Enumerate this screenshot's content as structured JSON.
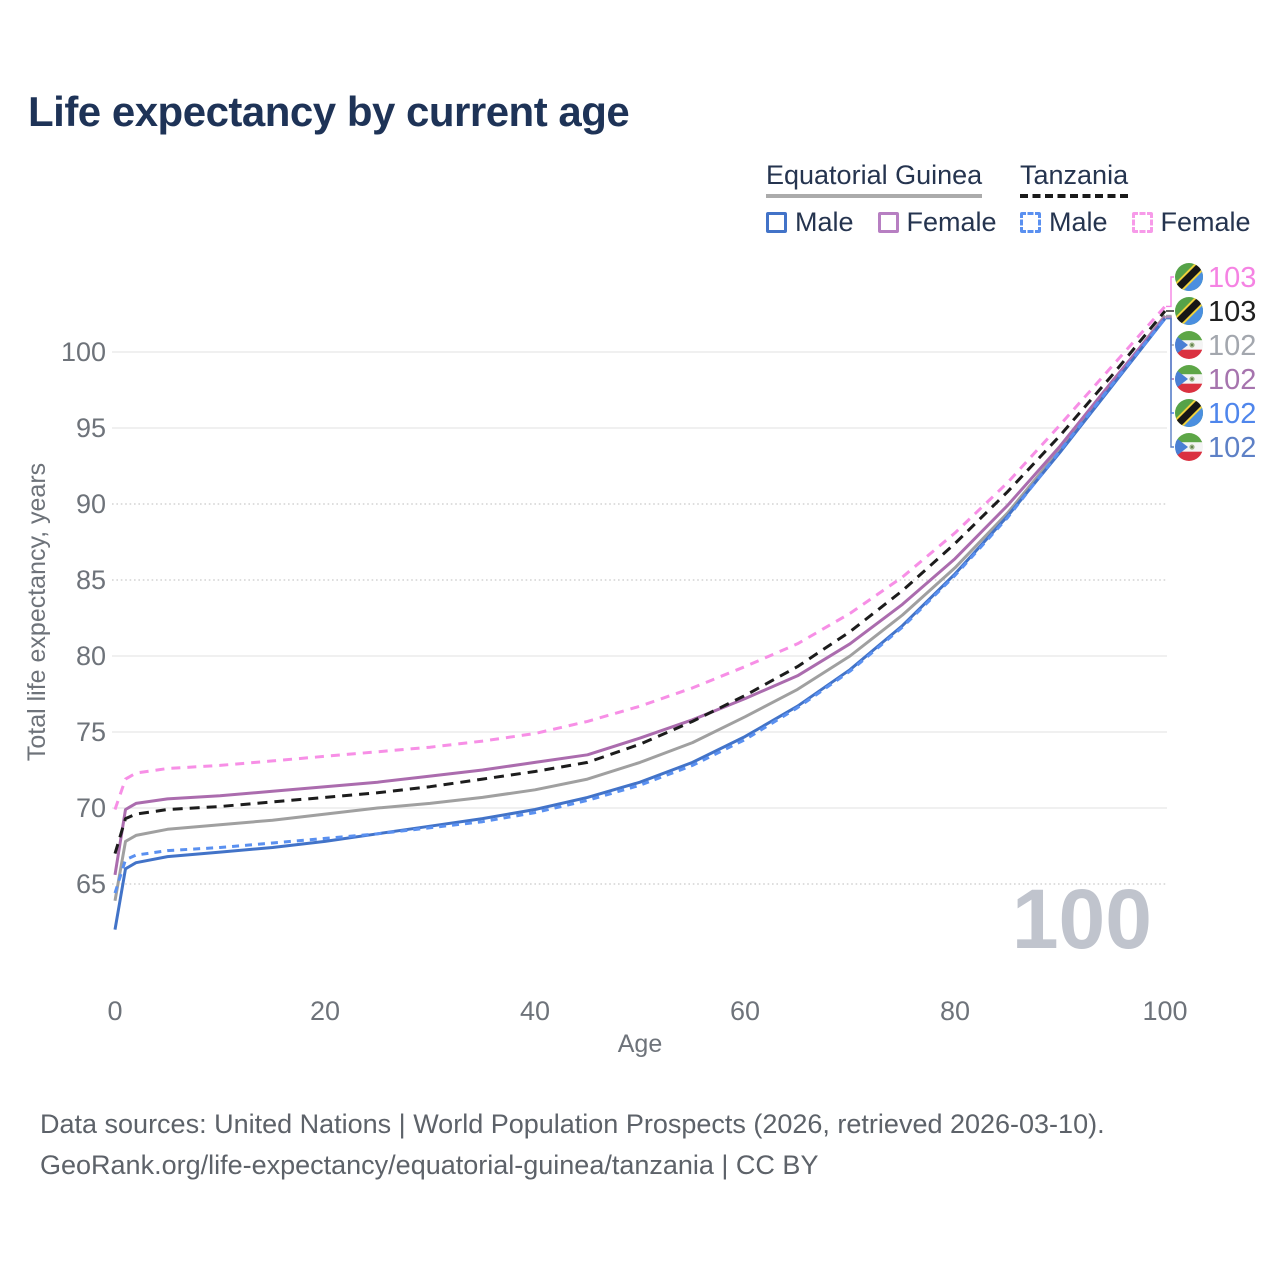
{
  "title": "Life expectancy by current age",
  "legend": {
    "groups": [
      {
        "label": "Equatorial Guinea",
        "line_style": "solid",
        "underline_color": "#ababab",
        "items": [
          {
            "label": "Male",
            "color": "#4273c8",
            "dashed": false
          },
          {
            "label": "Female",
            "color": "#b77fc2",
            "dashed": false
          }
        ]
      },
      {
        "label": "Tanzania",
        "line_style": "dashed",
        "underline_color": "#1a1a1a",
        "items": [
          {
            "label": "Male",
            "color": "#5a90f0",
            "dashed": true
          },
          {
            "label": "Female",
            "color": "#f79ae9",
            "dashed": true
          }
        ]
      }
    ]
  },
  "chart_data": {
    "type": "line",
    "title": "Life expectancy by current age",
    "xlabel": "Age",
    "ylabel": "Total life expectancy, years",
    "x_ticks": [
      0,
      20,
      40,
      60,
      80,
      100
    ],
    "y_ticks": [
      65,
      70,
      75,
      80,
      85,
      90,
      95,
      100
    ],
    "dotted_gridlines": [
      65,
      85,
      90
    ],
    "xlim": [
      0,
      100
    ],
    "ylim": [
      61,
      104
    ],
    "grid": "horizontal",
    "legend_position": "top-right",
    "watermark": "100",
    "x": [
      0,
      1,
      2,
      5,
      10,
      15,
      20,
      25,
      30,
      35,
      40,
      45,
      50,
      55,
      60,
      65,
      70,
      75,
      80,
      85,
      90,
      95,
      100
    ],
    "series": [
      {
        "id": "eg-total",
        "name": "Equatorial Guinea Total",
        "country": "Equatorial Guinea",
        "sex": "Total",
        "color": "#a0a0a0",
        "dash": null,
        "values": [
          63.9,
          67.8,
          68.2,
          68.6,
          68.9,
          69.2,
          69.6,
          70.0,
          70.3,
          70.7,
          71.2,
          71.9,
          73.0,
          74.3,
          76.0,
          77.8,
          80.0,
          82.7,
          85.8,
          89.4,
          93.6,
          98.0,
          102.4
        ]
      },
      {
        "id": "eg-female",
        "name": "Equatorial Guinea Female",
        "country": "Equatorial Guinea",
        "sex": "Female",
        "color": "#ab6cae",
        "dash": null,
        "values": [
          65.6,
          69.9,
          70.3,
          70.6,
          70.8,
          71.1,
          71.4,
          71.7,
          72.1,
          72.5,
          73.0,
          73.5,
          74.6,
          75.8,
          77.2,
          78.7,
          80.8,
          83.4,
          86.4,
          89.9,
          93.8,
          98.1,
          102.3
        ]
      },
      {
        "id": "eg-male",
        "name": "Equatorial Guinea Male",
        "country": "Equatorial Guinea",
        "sex": "Male",
        "color": "#4273c8",
        "dash": null,
        "values": [
          62.0,
          66.0,
          66.4,
          66.8,
          67.1,
          67.4,
          67.8,
          68.3,
          68.8,
          69.3,
          69.9,
          70.7,
          71.7,
          73.0,
          74.7,
          76.7,
          79.1,
          82.0,
          85.4,
          89.2,
          93.4,
          97.8,
          102.2
        ]
      },
      {
        "id": "tz-total",
        "name": "Tanzania Total",
        "country": "Tanzania",
        "sex": "Total",
        "color": "#1c1c1c",
        "dash": "10 7",
        "values": [
          67.0,
          69.3,
          69.6,
          69.9,
          70.1,
          70.4,
          70.7,
          71.0,
          71.4,
          71.9,
          72.4,
          73.0,
          74.2,
          75.7,
          77.4,
          79.3,
          81.6,
          84.3,
          87.4,
          90.8,
          94.5,
          98.5,
          102.7
        ]
      },
      {
        "id": "tz-male",
        "name": "Tanzania Male",
        "country": "Tanzania",
        "sex": "Male",
        "color": "#5a90f0",
        "dash": "7 6",
        "values": [
          64.4,
          66.6,
          66.9,
          67.2,
          67.4,
          67.7,
          68.0,
          68.3,
          68.7,
          69.1,
          69.7,
          70.5,
          71.5,
          72.8,
          74.5,
          76.6,
          79.0,
          81.9,
          85.3,
          89.1,
          93.5,
          97.9,
          102.2
        ]
      },
      {
        "id": "tz-female",
        "name": "Tanzania Female",
        "country": "Tanzania",
        "sex": "Female",
        "color": "#f78fe6",
        "dash": "9 7",
        "values": [
          69.9,
          71.9,
          72.3,
          72.6,
          72.8,
          73.1,
          73.4,
          73.7,
          74.0,
          74.4,
          74.9,
          75.7,
          76.7,
          77.9,
          79.3,
          80.8,
          82.8,
          85.2,
          88.1,
          91.4,
          95.2,
          99.1,
          103.0
        ]
      }
    ],
    "end_labels": [
      {
        "series_id": "tz-female",
        "value": "103",
        "color": "#f583e3",
        "flag": "tz"
      },
      {
        "series_id": "tz-total",
        "value": "103",
        "color": "#1f1f1f",
        "flag": "tz"
      },
      {
        "series_id": "eg-total",
        "value": "102",
        "color": "#a3a7ae",
        "flag": "eg"
      },
      {
        "series_id": "eg-female",
        "value": "102",
        "color": "#a674ae",
        "flag": "eg"
      },
      {
        "series_id": "tz-male",
        "value": "102",
        "color": "#4f86ec",
        "flag": "tz"
      },
      {
        "series_id": "eg-male",
        "value": "102",
        "color": "#5d80c6",
        "flag": "eg"
      }
    ]
  },
  "footer": {
    "line1": "Data sources: United Nations | World Population Prospects (2026, retrieved 2026-03-10).",
    "line2": "GeoRank.org/life-expectancy/equatorial-guinea/tanzania | CC BY"
  }
}
